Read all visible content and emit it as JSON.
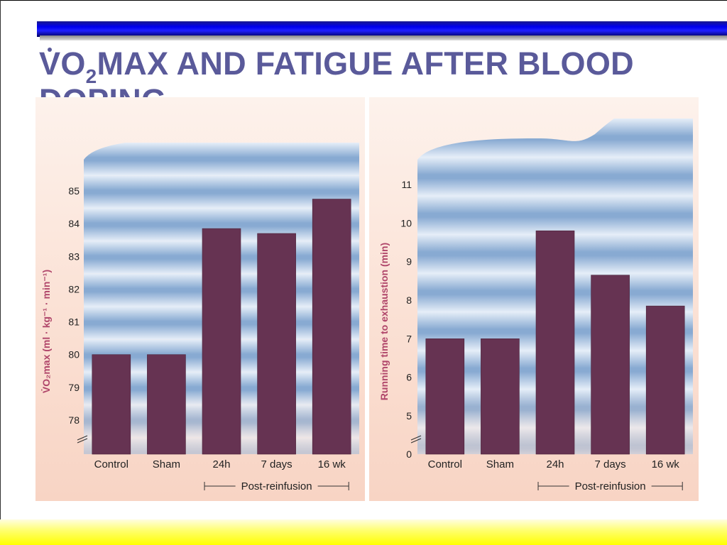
{
  "slide": {
    "title_pre": "V",
    "title_o": "O",
    "title_sub": "2",
    "title_post": "MAX AND FATIGUE AFTER BLOOD DOPING"
  },
  "colors": {
    "bar": "#663352",
    "title": "#5a5a9a",
    "axis_label": "#b0466a",
    "stripe_light": "#e6eef8",
    "stripe_dark": "#88aad2",
    "peach": "#f8d4c4"
  },
  "chart_data": [
    {
      "type": "bar",
      "title": "",
      "categories": [
        "Control",
        "Sham",
        "24h",
        "7 days",
        "16 wk"
      ],
      "values": [
        80.0,
        80.0,
        83.85,
        83.7,
        84.75
      ],
      "ylabel": "V̇O₂max (ml · kg⁻¹ · min⁻¹)",
      "xlabel": "",
      "ylim": [
        77.5,
        85.5
      ],
      "yticks": [
        78,
        79,
        80,
        81,
        82,
        83,
        84,
        85
      ],
      "axis_break": true,
      "group_label": "Post-reinfusion",
      "group_categories": [
        "24h",
        "7 days",
        "16 wk"
      ]
    },
    {
      "type": "bar",
      "title": "",
      "categories": [
        "Control",
        "Sham",
        "24h",
        "7 days",
        "16 wk"
      ],
      "values": [
        7.0,
        7.0,
        9.8,
        8.65,
        7.85
      ],
      "ylabel": "Running time to exhaustion (min)",
      "xlabel": "",
      "ylim": [
        0,
        11.5
      ],
      "yticks": [
        0,
        5,
        6,
        7,
        8,
        9,
        10,
        11
      ],
      "axis_break": true,
      "group_label": "Post-reinfusion",
      "group_categories": [
        "24h",
        "7 days",
        "16 wk"
      ]
    }
  ]
}
